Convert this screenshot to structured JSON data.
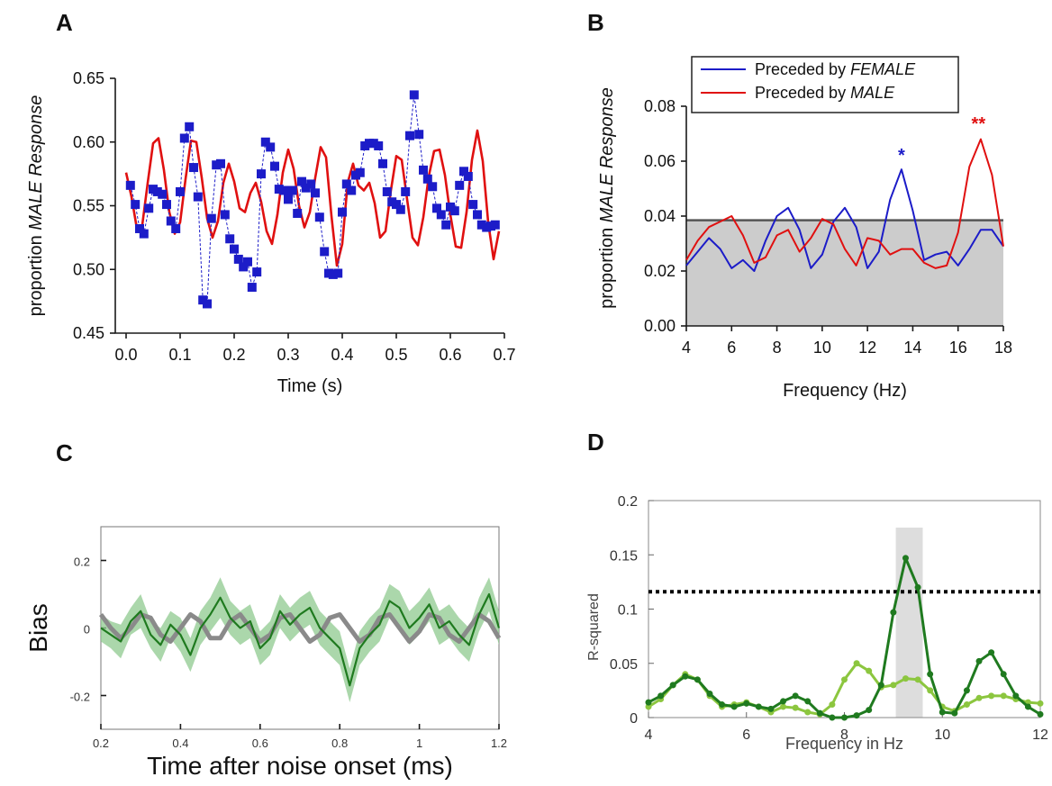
{
  "chart_data": [
    {
      "panel": "A",
      "type": "line",
      "xlabel": "Time (s)",
      "ylabel_prefix": "proportion ",
      "ylabel_italic": "MALE Response",
      "xlim": [
        -0.02,
        0.7
      ],
      "ylim": [
        0.45,
        0.65
      ],
      "xticks": [
        0.0,
        0.1,
        0.2,
        0.3,
        0.4,
        0.5,
        0.6,
        0.7
      ],
      "xtick_labels": [
        "0.0",
        "0.1",
        "0.2",
        "0.3",
        "0.4",
        "0.5",
        "0.6",
        "0.7"
      ],
      "yticks": [
        0.45,
        0.5,
        0.55,
        0.6,
        0.65
      ],
      "ytick_labels": [
        "0.45",
        "0.50",
        "0.55",
        "0.60",
        "0.65"
      ],
      "series": [
        {
          "kind": "markers-line",
          "color": "#1c1cc8",
          "x": [
            0.008,
            0.017,
            0.025,
            0.033,
            0.042,
            0.05,
            0.058,
            0.067,
            0.075,
            0.083,
            0.092,
            0.1,
            0.108,
            0.117,
            0.125,
            0.133,
            0.142,
            0.15,
            0.158,
            0.167,
            0.175,
            0.183,
            0.192,
            0.2,
            0.208,
            0.217,
            0.225,
            0.233,
            0.242,
            0.25,
            0.258,
            0.267,
            0.275,
            0.283,
            0.292,
            0.3,
            0.308,
            0.317,
            0.325,
            0.333,
            0.342,
            0.35,
            0.358,
            0.367,
            0.375,
            0.383,
            0.392,
            0.4,
            0.408,
            0.417,
            0.425,
            0.433,
            0.442,
            0.45,
            0.458,
            0.467,
            0.475,
            0.483,
            0.492,
            0.5,
            0.508,
            0.517,
            0.525,
            0.533,
            0.542,
            0.55,
            0.558,
            0.567,
            0.575,
            0.583,
            0.592,
            0.6,
            0.608,
            0.617,
            0.625,
            0.633,
            0.642,
            0.65,
            0.658,
            0.667,
            0.675,
            0.683
          ],
          "y": [
            0.566,
            0.551,
            0.532,
            0.528,
            0.548,
            0.563,
            0.561,
            0.559,
            0.551,
            0.538,
            0.532,
            0.561,
            0.603,
            0.612,
            0.58,
            0.557,
            0.476,
            0.473,
            0.54,
            0.582,
            0.583,
            0.543,
            0.524,
            0.516,
            0.508,
            0.502,
            0.506,
            0.486,
            0.498,
            0.575,
            0.6,
            0.596,
            0.581,
            0.563,
            0.562,
            0.555,
            0.562,
            0.544,
            0.569,
            0.564,
            0.567,
            0.56,
            0.541,
            0.514,
            0.497,
            0.496,
            0.497,
            0.545,
            0.567,
            0.562,
            0.574,
            0.576,
            0.597,
            0.599,
            0.599,
            0.597,
            0.583,
            0.561,
            0.553,
            0.551,
            0.547,
            0.561,
            0.605,
            0.637,
            0.606,
            0.578,
            0.571,
            0.565,
            0.548,
            0.543,
            0.535,
            0.549,
            0.546,
            0.566,
            0.577,
            0.573,
            0.551,
            0.543,
            0.535,
            0.533,
            0.534,
            0.535
          ]
        },
        {
          "kind": "line",
          "color": "#e01010",
          "x": [
            0.0,
            0.01,
            0.02,
            0.03,
            0.04,
            0.05,
            0.06,
            0.07,
            0.08,
            0.09,
            0.1,
            0.11,
            0.12,
            0.13,
            0.14,
            0.15,
            0.16,
            0.17,
            0.18,
            0.19,
            0.2,
            0.21,
            0.22,
            0.23,
            0.24,
            0.25,
            0.26,
            0.27,
            0.28,
            0.29,
            0.3,
            0.31,
            0.32,
            0.33,
            0.34,
            0.35,
            0.36,
            0.37,
            0.38,
            0.39,
            0.4,
            0.41,
            0.42,
            0.43,
            0.44,
            0.45,
            0.46,
            0.47,
            0.48,
            0.49,
            0.5,
            0.51,
            0.52,
            0.53,
            0.54,
            0.55,
            0.56,
            0.57,
            0.58,
            0.59,
            0.6,
            0.61,
            0.62,
            0.63,
            0.64,
            0.65,
            0.66,
            0.67,
            0.68,
            0.69
          ],
          "y": [
            0.576,
            0.557,
            0.532,
            0.535,
            0.568,
            0.599,
            0.603,
            0.578,
            0.545,
            0.528,
            0.537,
            0.571,
            0.601,
            0.6,
            0.572,
            0.54,
            0.525,
            0.538,
            0.568,
            0.583,
            0.569,
            0.548,
            0.545,
            0.56,
            0.568,
            0.553,
            0.53,
            0.52,
            0.543,
            0.576,
            0.594,
            0.579,
            0.55,
            0.533,
            0.545,
            0.572,
            0.596,
            0.588,
            0.542,
            0.503,
            0.52,
            0.568,
            0.583,
            0.566,
            0.562,
            0.568,
            0.552,
            0.525,
            0.53,
            0.562,
            0.589,
            0.586,
            0.555,
            0.525,
            0.519,
            0.541,
            0.573,
            0.593,
            0.594,
            0.574,
            0.543,
            0.518,
            0.517,
            0.545,
            0.586,
            0.609,
            0.585,
            0.537,
            0.508,
            0.53
          ]
        }
      ]
    },
    {
      "panel": "B",
      "type": "line",
      "xlabel": "Frequency (Hz)",
      "ylabel_prefix": "proportion ",
      "ylabel_italic": "MALE Response",
      "xlim": [
        4,
        18
      ],
      "ylim": [
        0,
        0.08
      ],
      "xticks": [
        4,
        6,
        8,
        10,
        12,
        14,
        16,
        18
      ],
      "xtick_labels": [
        "4",
        "6",
        "8",
        "10",
        "12",
        "14",
        "16",
        "18"
      ],
      "yticks": [
        0,
        0.02,
        0.04,
        0.06,
        0.08
      ],
      "ytick_labels": [
        "0.00",
        "0.02",
        "0.04",
        "0.06",
        "0.08"
      ],
      "legend_placement": "top",
      "legend": [
        {
          "prefix": "Preceded by ",
          "italic": "FEMALE",
          "color": "#1c1cc8"
        },
        {
          "prefix": "Preceded by ",
          "italic": "MALE",
          "color": "#e01010"
        }
      ],
      "threshold": {
        "color": "#555555",
        "fill": "#cccccc",
        "x": [
          4,
          18
        ],
        "y": [
          0.0385,
          0.0385
        ]
      },
      "series": [
        {
          "name": "Preceded by FEMALE",
          "color": "#1c1cc8",
          "x": [
            4,
            4.5,
            5,
            5.5,
            6,
            6.5,
            7,
            7.5,
            8,
            8.5,
            9,
            9.5,
            10,
            10.5,
            11,
            11.5,
            12,
            12.5,
            13,
            13.5,
            14,
            14.5,
            15,
            15.5,
            16,
            16.5,
            17,
            17.5,
            18
          ],
          "y": [
            0.022,
            0.027,
            0.032,
            0.028,
            0.021,
            0.024,
            0.02,
            0.031,
            0.04,
            0.043,
            0.035,
            0.021,
            0.026,
            0.038,
            0.043,
            0.036,
            0.021,
            0.027,
            0.046,
            0.057,
            0.042,
            0.024,
            0.026,
            0.027,
            0.022,
            0.028,
            0.035,
            0.035,
            0.029
          ]
        },
        {
          "name": "Preceded by MALE",
          "color": "#e01010",
          "x": [
            4,
            4.5,
            5,
            5.5,
            6,
            6.5,
            7,
            7.5,
            8,
            8.5,
            9,
            9.5,
            10,
            10.5,
            11,
            11.5,
            12,
            12.5,
            13,
            13.5,
            14,
            14.5,
            15,
            15.5,
            16,
            16.5,
            17,
            17.5,
            18
          ],
          "y": [
            0.024,
            0.031,
            0.036,
            0.038,
            0.04,
            0.033,
            0.023,
            0.025,
            0.033,
            0.035,
            0.027,
            0.032,
            0.039,
            0.037,
            0.028,
            0.022,
            0.032,
            0.031,
            0.026,
            0.028,
            0.028,
            0.023,
            0.021,
            0.022,
            0.034,
            0.058,
            0.068,
            0.055,
            0.029
          ]
        }
      ],
      "annotations": [
        {
          "text": "*",
          "x": 13.5,
          "y": 0.06,
          "color": "#1c1cc8"
        },
        {
          "text": "**",
          "x": 16.9,
          "y": 0.0715,
          "color": "#e01010"
        }
      ]
    },
    {
      "panel": "C",
      "type": "line",
      "xlabel": "Time after noise onset (ms)",
      "ylabel": "Bias",
      "xlim": [
        0.2,
        1.2
      ],
      "ylim": [
        -0.3,
        0.3
      ],
      "xticks": [
        0.2,
        0.4,
        0.6,
        0.8,
        1.0,
        1.2
      ],
      "xtick_labels": [
        "0.2",
        "0.4",
        "0.6",
        "0.8",
        "1",
        "1.2"
      ],
      "yticks": [
        -0.2,
        0,
        0.2
      ],
      "ytick_labels": [
        "-0.2",
        "0",
        "0.2"
      ],
      "band_color": "#8fc98f",
      "series": [
        {
          "color": "#8a8a8a",
          "x": [
            0.2,
            0.225,
            0.25,
            0.275,
            0.3,
            0.325,
            0.35,
            0.375,
            0.4,
            0.425,
            0.45,
            0.475,
            0.5,
            0.525,
            0.55,
            0.575,
            0.6,
            0.625,
            0.65,
            0.675,
            0.7,
            0.725,
            0.75,
            0.775,
            0.8,
            0.825,
            0.85,
            0.875,
            0.9,
            0.925,
            0.95,
            0.975,
            1.0,
            1.025,
            1.05,
            1.075,
            1.1,
            1.125,
            1.15,
            1.175,
            1.2
          ],
          "y": [
            0.04,
            0.0,
            -0.03,
            0.0,
            0.04,
            0.03,
            -0.02,
            -0.04,
            0.0,
            0.04,
            0.02,
            -0.03,
            -0.03,
            0.02,
            0.04,
            0.0,
            -0.04,
            -0.02,
            0.03,
            0.04,
            0.0,
            -0.04,
            -0.02,
            0.03,
            0.04,
            0.0,
            -0.04,
            -0.02,
            0.03,
            0.04,
            0.0,
            -0.04,
            -0.01,
            0.04,
            0.03,
            -0.02,
            -0.04,
            0.0,
            0.04,
            0.02,
            -0.03
          ]
        },
        {
          "color": "#1f7a1f",
          "x": [
            0.2,
            0.225,
            0.25,
            0.275,
            0.3,
            0.325,
            0.35,
            0.375,
            0.4,
            0.425,
            0.45,
            0.475,
            0.5,
            0.525,
            0.55,
            0.575,
            0.6,
            0.625,
            0.65,
            0.675,
            0.7,
            0.725,
            0.75,
            0.775,
            0.8,
            0.825,
            0.85,
            0.875,
            0.9,
            0.925,
            0.95,
            0.975,
            1.0,
            1.025,
            1.05,
            1.075,
            1.1,
            1.125,
            1.15,
            1.175,
            1.2
          ],
          "y": [
            0.0,
            -0.02,
            -0.04,
            0.02,
            0.05,
            -0.02,
            -0.05,
            0.01,
            -0.02,
            -0.08,
            0.0,
            0.04,
            0.09,
            0.03,
            0.0,
            0.02,
            -0.06,
            -0.03,
            0.05,
            0.01,
            0.04,
            0.06,
            0.0,
            -0.03,
            -0.06,
            -0.17,
            -0.06,
            -0.02,
            0.01,
            0.08,
            0.06,
            0.0,
            0.03,
            0.07,
            0.0,
            0.02,
            -0.02,
            -0.05,
            0.04,
            0.1,
            0.0
          ],
          "err": [
            0.04,
            0.04,
            0.05,
            0.04,
            0.05,
            0.04,
            0.05,
            0.04,
            0.05,
            0.05,
            0.05,
            0.05,
            0.06,
            0.05,
            0.05,
            0.05,
            0.05,
            0.05,
            0.05,
            0.05,
            0.05,
            0.05,
            0.05,
            0.05,
            0.05,
            0.05,
            0.05,
            0.05,
            0.05,
            0.05,
            0.05,
            0.05,
            0.05,
            0.05,
            0.05,
            0.05,
            0.05,
            0.05,
            0.05,
            0.05,
            0.05
          ]
        }
      ]
    },
    {
      "panel": "D",
      "type": "line",
      "xlabel": "Frequency in Hz",
      "ylabel": "R-squared",
      "xlim": [
        4,
        12
      ],
      "ylim": [
        0,
        0.2
      ],
      "xticks": [
        4,
        6,
        8,
        10,
        12
      ],
      "xtick_labels": [
        "4",
        "6",
        "8",
        "10",
        "12"
      ],
      "yticks": [
        0,
        0.05,
        0.1,
        0.15,
        0.2
      ],
      "ytick_labels": [
        "0",
        "0.05",
        "0.1",
        "0.15",
        "0.2"
      ],
      "shaded_band": {
        "x": [
          9.05,
          9.6
        ],
        "color": "#dddddd"
      },
      "threshold": {
        "y": 0.116,
        "style": "dotted",
        "color": "#000000"
      },
      "series": [
        {
          "color": "#1f7a1f",
          "x": [
            4,
            4.25,
            4.5,
            4.75,
            5,
            5.25,
            5.5,
            5.75,
            6,
            6.25,
            6.5,
            6.75,
            7,
            7.25,
            7.5,
            7.75,
            8,
            8.25,
            8.5,
            8.75,
            9,
            9.25,
            9.5,
            9.75,
            10,
            10.25,
            10.5,
            10.75,
            11,
            11.25,
            11.5,
            11.75,
            12
          ],
          "y": [
            0.014,
            0.02,
            0.03,
            0.038,
            0.035,
            0.022,
            0.012,
            0.01,
            0.013,
            0.01,
            0.008,
            0.015,
            0.02,
            0.015,
            0.004,
            0.0,
            0.0,
            0.002,
            0.007,
            0.03,
            0.097,
            0.147,
            0.12,
            0.04,
            0.005,
            0.004,
            0.025,
            0.052,
            0.06,
            0.04,
            0.02,
            0.01,
            0.003
          ]
        },
        {
          "color": "#8cc63f",
          "x": [
            4,
            4.25,
            4.5,
            4.75,
            5,
            5.25,
            5.5,
            5.75,
            6,
            6.25,
            6.5,
            6.75,
            7,
            7.25,
            7.5,
            7.75,
            8,
            8.25,
            8.5,
            8.75,
            9,
            9.25,
            9.5,
            9.75,
            10,
            10.25,
            10.5,
            10.75,
            11,
            11.25,
            11.5,
            11.75,
            12
          ],
          "y": [
            0.01,
            0.017,
            0.03,
            0.04,
            0.035,
            0.02,
            0.01,
            0.012,
            0.014,
            0.01,
            0.005,
            0.01,
            0.009,
            0.005,
            0.003,
            0.012,
            0.035,
            0.05,
            0.043,
            0.028,
            0.03,
            0.036,
            0.035,
            0.025,
            0.01,
            0.006,
            0.012,
            0.018,
            0.02,
            0.02,
            0.017,
            0.014,
            0.013
          ]
        }
      ]
    }
  ],
  "panel_labels": [
    "A",
    "B",
    "C",
    "D"
  ]
}
